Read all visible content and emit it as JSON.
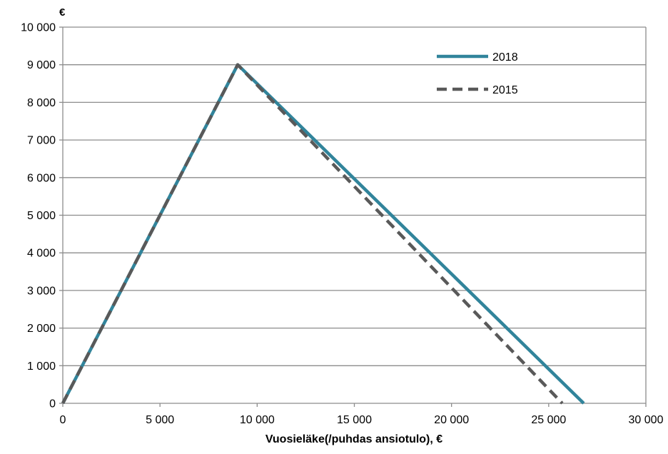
{
  "chart_data": {
    "type": "line",
    "title": "",
    "y_unit_label": "€",
    "xlabel": "Vuosieläke(/puhdas ansiotulo), €",
    "ylabel": "",
    "xlim": [
      0,
      30000
    ],
    "ylim": [
      0,
      10000
    ],
    "x_ticks": [
      0,
      5000,
      10000,
      15000,
      20000,
      25000,
      30000
    ],
    "x_tick_labels": [
      "0",
      "5 000",
      "10 000",
      "15 000",
      "20 000",
      "25 000",
      "30 000"
    ],
    "y_ticks": [
      0,
      1000,
      2000,
      3000,
      4000,
      5000,
      6000,
      7000,
      8000,
      9000,
      10000
    ],
    "y_tick_labels": [
      "0",
      "1 000",
      "2 000",
      "3 000",
      "4 000",
      "5 000",
      "6 000",
      "7 000",
      "8 000",
      "9 000",
      "10 000"
    ],
    "grid": true,
    "legend_position": "top-right",
    "series": [
      {
        "name": "2018",
        "color": "#31849b",
        "style": "solid",
        "points": [
          [
            0,
            0
          ],
          [
            9000,
            9000
          ],
          [
            26800,
            0
          ]
        ]
      },
      {
        "name": "2015",
        "color": "#595959",
        "style": "dashed",
        "points": [
          [
            0,
            0
          ],
          [
            9000,
            9000
          ],
          [
            25700,
            0
          ]
        ]
      }
    ]
  }
}
